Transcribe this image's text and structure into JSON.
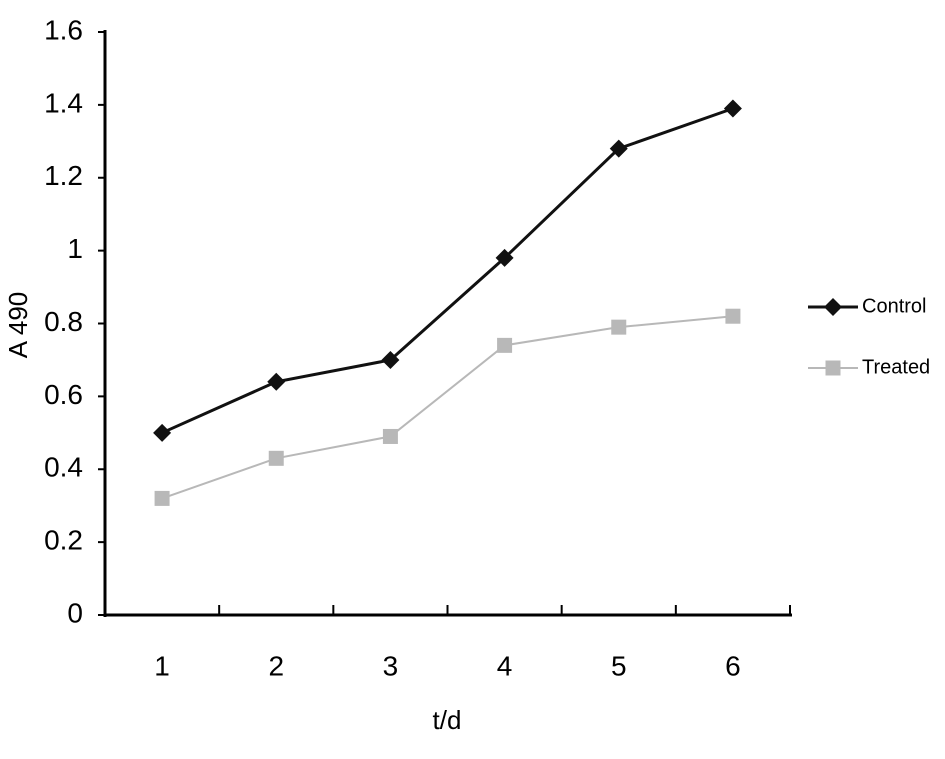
{
  "chart_data": {
    "type": "line",
    "x_label": "t/d",
    "y_label": "A 490",
    "categories": [
      "1",
      "2",
      "3",
      "4",
      "5",
      "6"
    ],
    "series": [
      {
        "name": "Control",
        "color": "#111111",
        "marker": "diamond",
        "values": [
          0.5,
          0.64,
          0.7,
          0.98,
          1.28,
          1.39
        ]
      },
      {
        "name": "Treated",
        "color": "#b8b8b8",
        "marker": "square",
        "values": [
          0.32,
          0.43,
          0.49,
          0.74,
          0.79,
          0.82
        ]
      }
    ],
    "ylim": [
      0,
      1.6
    ],
    "yticks": [
      0,
      0.2,
      0.4,
      0.6,
      0.8,
      1,
      1.2,
      1.4,
      1.6
    ],
    "grid": false,
    "legend": "right"
  }
}
